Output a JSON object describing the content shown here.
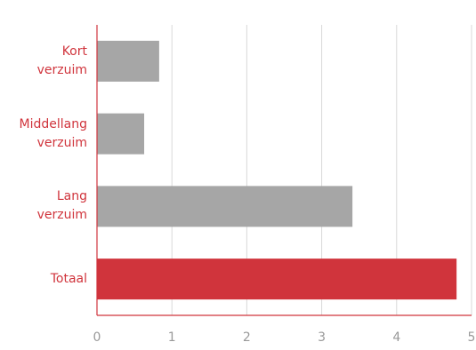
{
  "chart_data": {
    "type": "bar",
    "orientation": "horizontal",
    "categories": [
      "Kort verzuim",
      "Middellang verzuim",
      "Lang verzuim",
      "Totaal"
    ],
    "values": [
      0.83,
      0.63,
      3.41,
      4.8
    ],
    "colors": [
      "#a6a6a6",
      "#a6a6a6",
      "#a6a6a6",
      "#d0343c"
    ],
    "xlim": [
      0,
      5
    ],
    "xticks": [
      0,
      1,
      2,
      3,
      4,
      5
    ],
    "grid": true
  }
}
